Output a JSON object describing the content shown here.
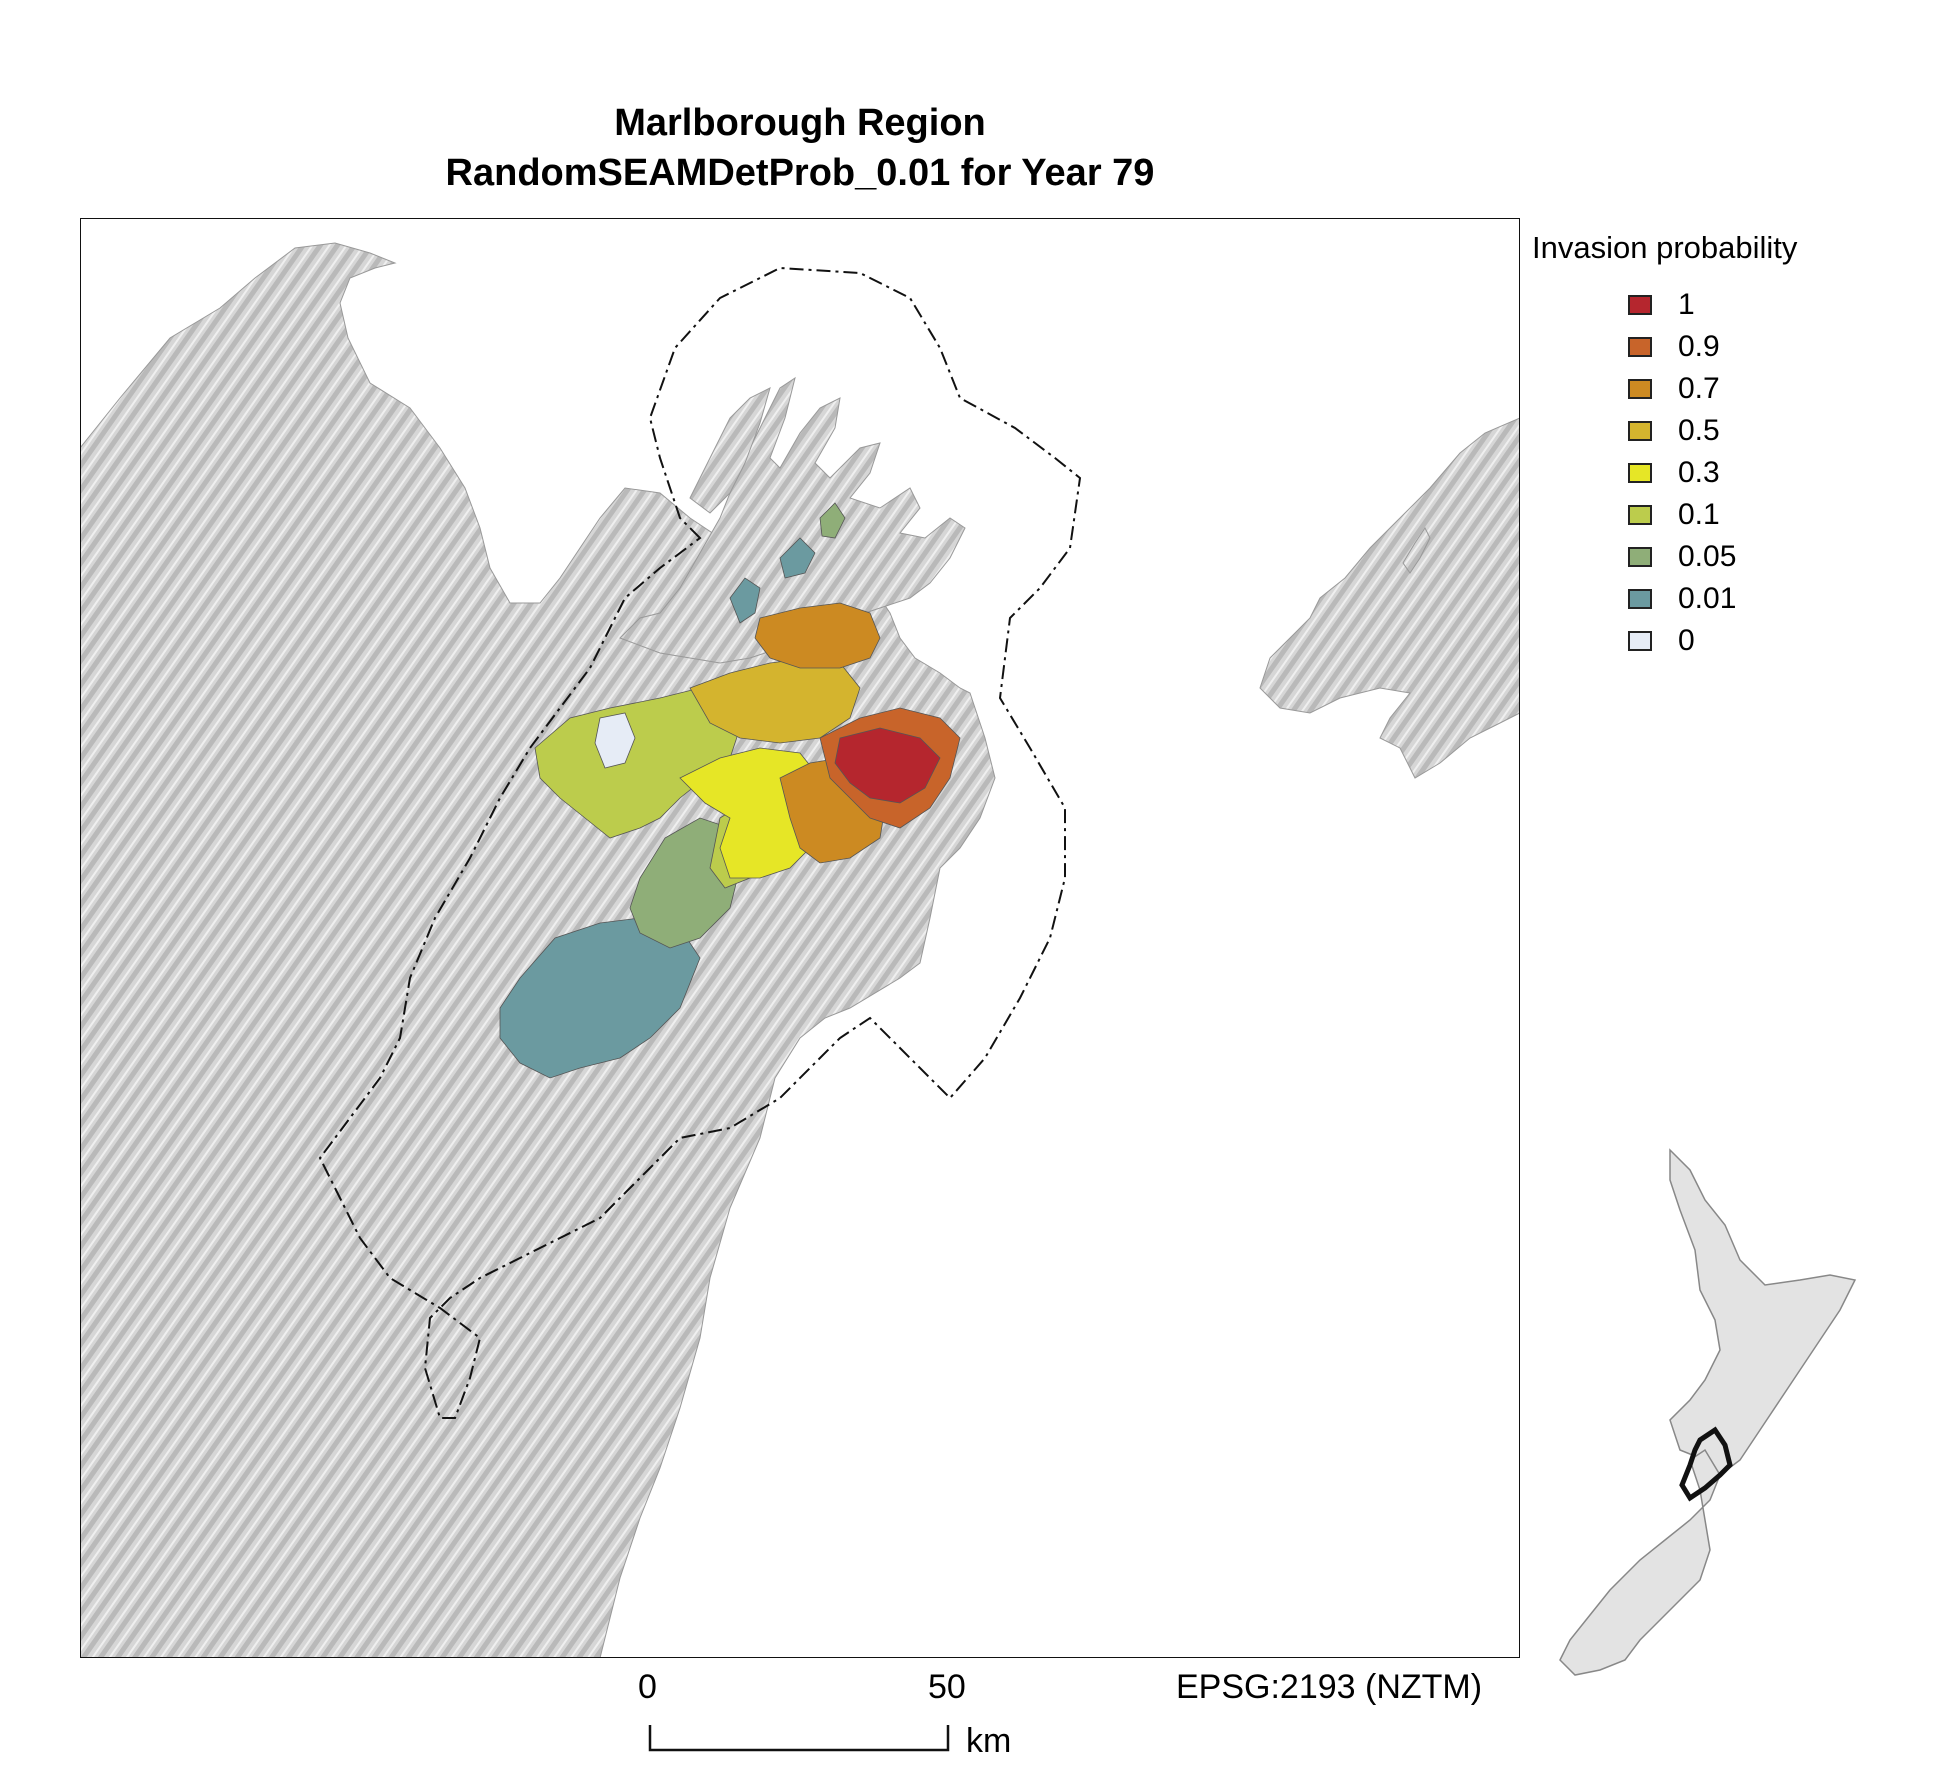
{
  "title": {
    "line1": "Marlborough Region",
    "line2": "RandomSEAMDetProb_0.01 for Year 79"
  },
  "legend": {
    "title": "Invasion probability",
    "items": [
      {
        "label": "1",
        "color": "#b5262e"
      },
      {
        "label": "0.9",
        "color": "#c8642a"
      },
      {
        "label": "0.7",
        "color": "#cc8a22"
      },
      {
        "label": "0.5",
        "color": "#d4b42e"
      },
      {
        "label": "0.3",
        "color": "#e6e626"
      },
      {
        "label": "0.1",
        "color": "#bccc4c"
      },
      {
        "label": "0.05",
        "color": "#8fae78"
      },
      {
        "label": "0.01",
        "color": "#6b9aa0"
      },
      {
        "label": "0",
        "color": "#e6ecf6"
      }
    ]
  },
  "scale_bar": {
    "start_label": "0",
    "end_label": "50",
    "unit": "km"
  },
  "crs_label": "EPSG:2193 (NZTM)",
  "colors": {
    "land": "#d9d9d9",
    "sea": "#ffffff",
    "inset_land": "#e3e3e3"
  }
}
